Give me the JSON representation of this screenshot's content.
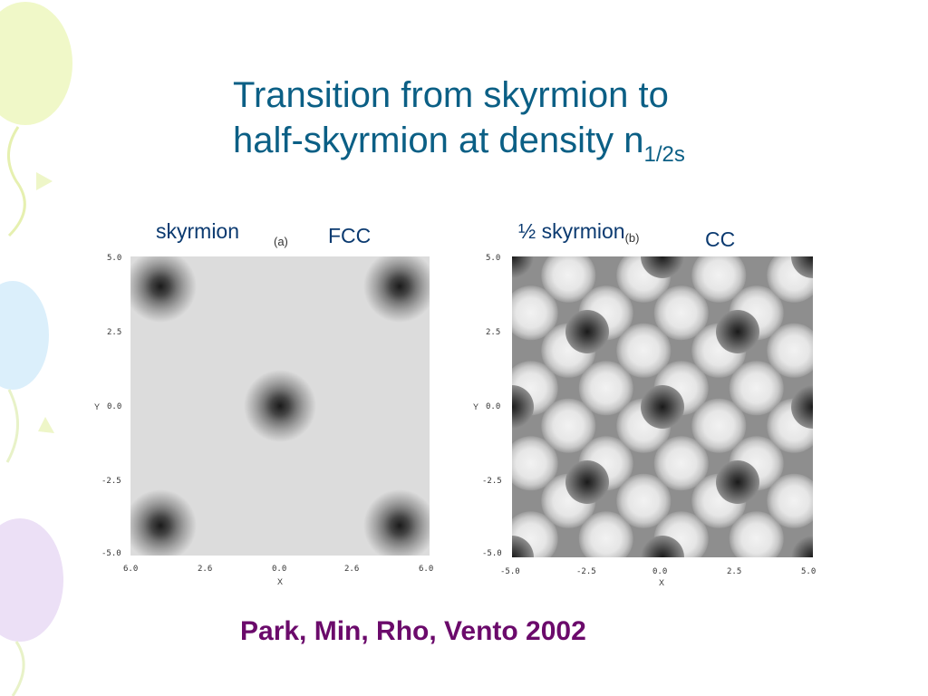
{
  "title": {
    "line1": "Transition from skyrmion to",
    "line2": "half-skyrmion at density n",
    "subscript": "1/2s"
  },
  "panel_a": {
    "label": "skyrmion",
    "tag": "(a)",
    "lattice": "FCC",
    "y_ticks": [
      "5.0",
      "2.5",
      "0.0",
      "-2.5",
      "-5.0"
    ],
    "x_ticks": [
      "6.0",
      "2.6",
      "0.0",
      "2.6",
      "6.0"
    ],
    "xlabel": "X",
    "ylabel": "Y"
  },
  "panel_b": {
    "label": "½ skyrmion",
    "tag": "(b)",
    "lattice": "CC",
    "y_ticks": [
      "5.0",
      "2.5",
      "0.0",
      "-2.5",
      "-5.0"
    ],
    "x_ticks": [
      "-5.0",
      "-2.5",
      "0.0",
      "2.5",
      "5.0"
    ],
    "xlabel": "X",
    "ylabel": "Y"
  },
  "citation": "Park, Min, Rho, Vento 2002",
  "colors": {
    "title": "#0b5f85",
    "label": "#0b3a70",
    "citation": "#6b0a6b"
  }
}
